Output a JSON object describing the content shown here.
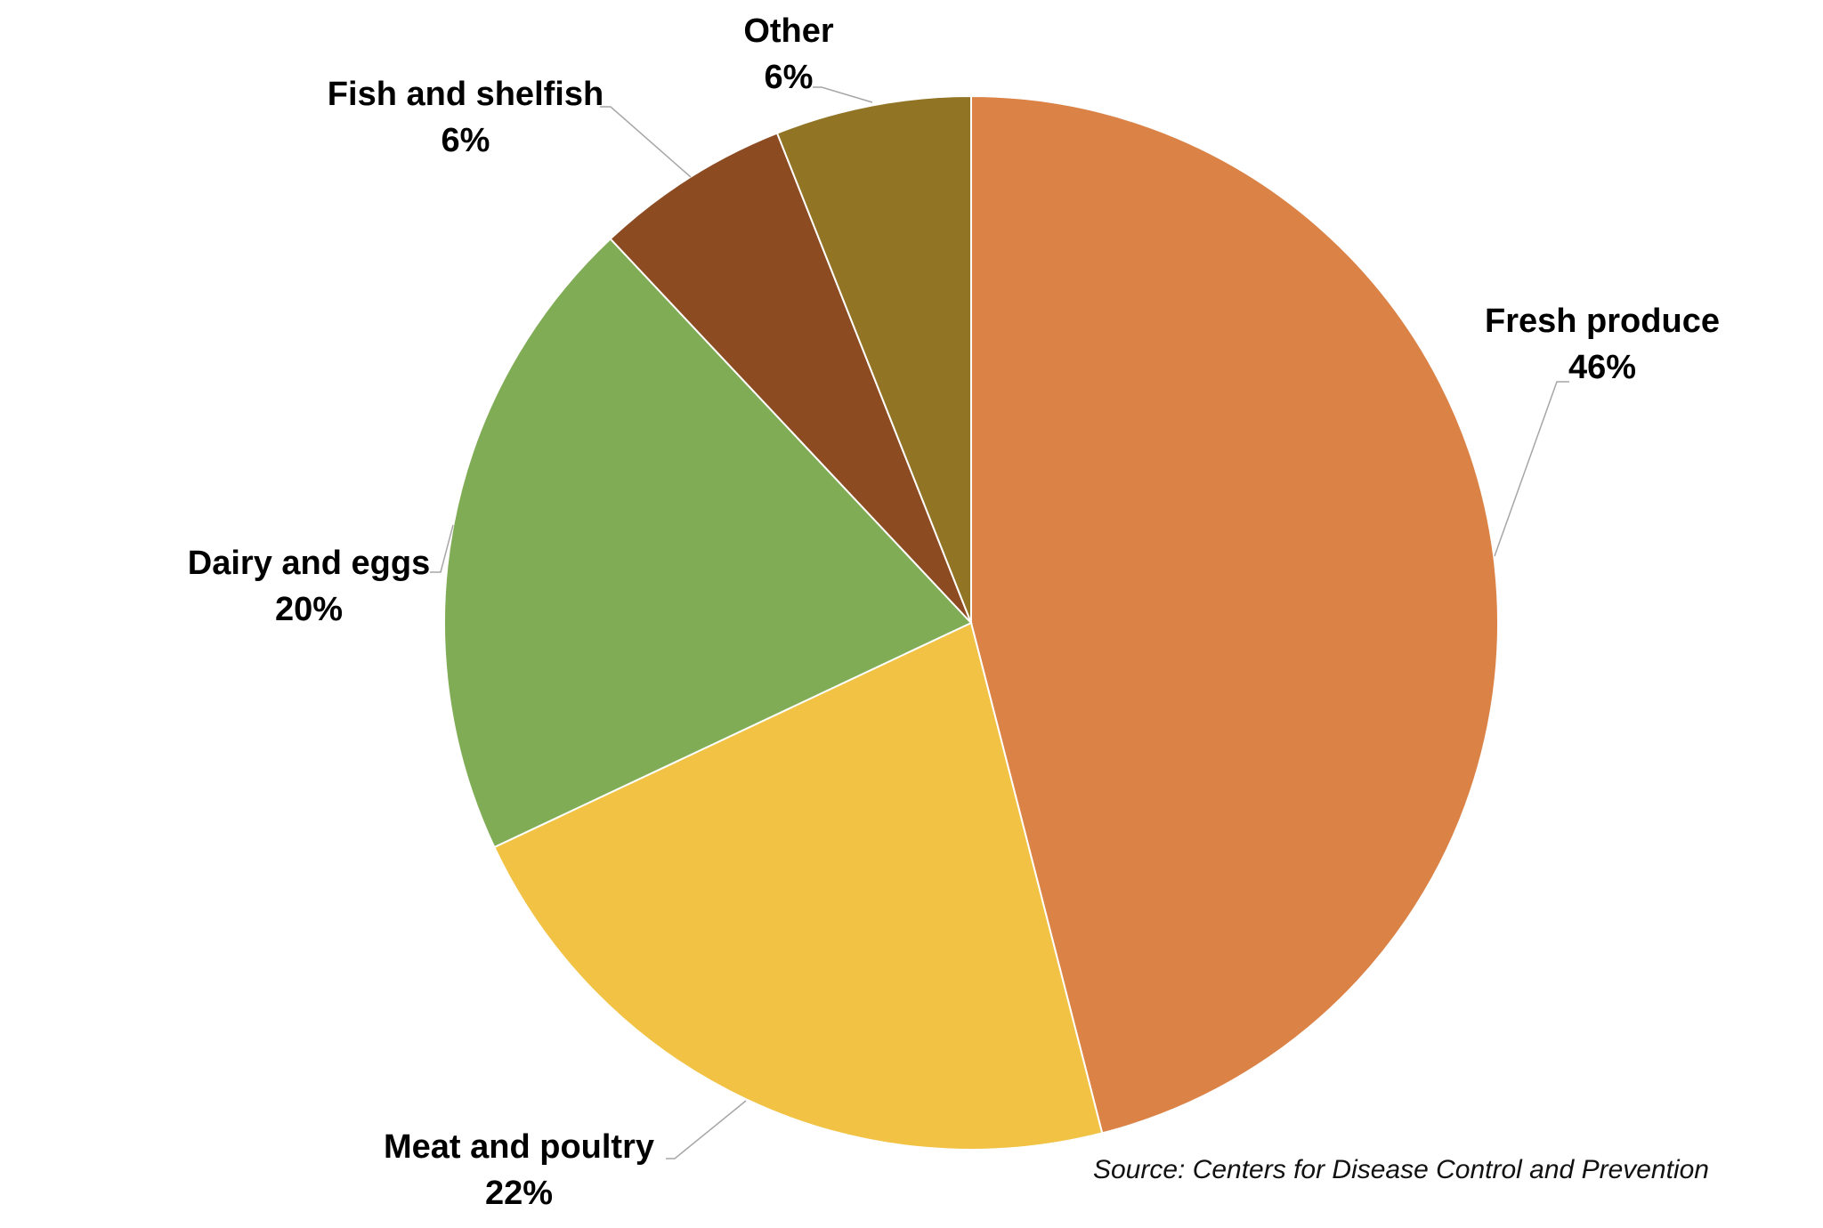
{
  "chart_data": {
    "type": "pie",
    "start_angle_deg": 0,
    "direction": "clockwise",
    "slices": [
      {
        "label": "Fresh produce",
        "value": 46,
        "value_label": "46%",
        "color": "#DB8246"
      },
      {
        "label": "Meat and poultry",
        "value": 22,
        "value_label": "22%",
        "color": "#F1C243"
      },
      {
        "label": "Dairy and eggs",
        "value": 20,
        "value_label": "20%",
        "color": "#81AC56"
      },
      {
        "label": "Fish and shelfish",
        "value": 6,
        "value_label": "6%",
        "color": "#8D4B22"
      },
      {
        "label": "Other",
        "value": 6,
        "value_label": "6%",
        "color": "#927425"
      }
    ]
  },
  "source": "Source: Centers for Disease Control and Prevention"
}
